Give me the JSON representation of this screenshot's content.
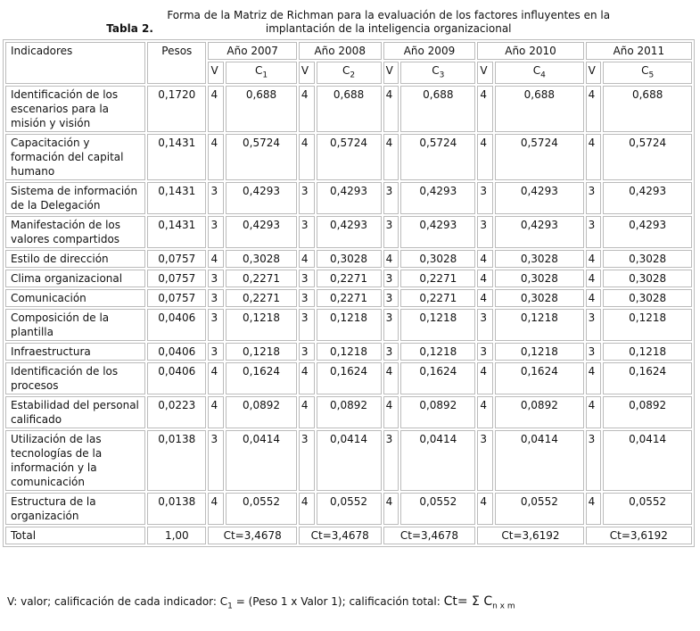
{
  "caption": {
    "label": "Tabla 2.",
    "text": "Forma de la Matriz de Richman para la evaluación de los factores influyentes en la implantación de la inteligencia organizacional"
  },
  "headers": {
    "indicadores": "Indicadores",
    "pesos": "Pesos",
    "years": [
      "Año 2007",
      "Año 2008",
      "Año 2009",
      "Año 2010",
      "Año 2011"
    ],
    "v": "V",
    "c": "C",
    "c_subs": [
      "1",
      "2",
      "3",
      "4",
      "5"
    ]
  },
  "rows": [
    {
      "name": "Identificación de los escenarios para la misión y visión",
      "peso": "0,1720",
      "vals": [
        [
          "4",
          "0,688"
        ],
        [
          "4",
          "0,688"
        ],
        [
          "4",
          "0,688"
        ],
        [
          "4",
          "0,688"
        ],
        [
          "4",
          "0,688"
        ]
      ]
    },
    {
      "name": "Capacitación y formación del capital humano",
      "peso": "0,1431",
      "vals": [
        [
          "4",
          "0,5724"
        ],
        [
          "4",
          "0,5724"
        ],
        [
          "4",
          "0,5724"
        ],
        [
          "4",
          "0,5724"
        ],
        [
          "4",
          "0,5724"
        ]
      ]
    },
    {
      "name": "Sistema de información de la Delegación",
      "peso": "0,1431",
      "vals": [
        [
          "3",
          "0,4293"
        ],
        [
          "3",
          "0,4293"
        ],
        [
          "3",
          "0,4293"
        ],
        [
          "3",
          "0,4293"
        ],
        [
          "3",
          "0,4293"
        ]
      ]
    },
    {
      "name": "Manifestación de los valores compartidos",
      "peso": "0,1431",
      "vals": [
        [
          "3",
          "0,4293"
        ],
        [
          "3",
          "0,4293"
        ],
        [
          "3",
          "0,4293"
        ],
        [
          "3",
          "0,4293"
        ],
        [
          "3",
          "0,4293"
        ]
      ]
    },
    {
      "name": "Estilo de dirección",
      "peso": "0,0757",
      "vals": [
        [
          "4",
          "0,3028"
        ],
        [
          "4",
          "0,3028"
        ],
        [
          "4",
          "0,3028"
        ],
        [
          "4",
          "0,3028"
        ],
        [
          "4",
          "0,3028"
        ]
      ]
    },
    {
      "name": "Clima organizacional",
      "peso": "0,0757",
      "vals": [
        [
          "3",
          "0,2271"
        ],
        [
          "3",
          "0,2271"
        ],
        [
          "3",
          "0,2271"
        ],
        [
          "4",
          "0,3028"
        ],
        [
          "4",
          "0,3028"
        ]
      ]
    },
    {
      "name": "Comunicación",
      "peso": "0,0757",
      "vals": [
        [
          "3",
          "0,2271"
        ],
        [
          "3",
          "0,2271"
        ],
        [
          "3",
          "0,2271"
        ],
        [
          "4",
          "0,3028"
        ],
        [
          "4",
          "0,3028"
        ]
      ]
    },
    {
      "name": "Composición de la plantilla",
      "peso": "0,0406",
      "vals": [
        [
          "3",
          "0,1218"
        ],
        [
          "3",
          "0,1218"
        ],
        [
          "3",
          "0,1218"
        ],
        [
          "3",
          "0,1218"
        ],
        [
          "3",
          "0,1218"
        ]
      ]
    },
    {
      "name": "Infraestructura",
      "peso": "0,0406",
      "vals": [
        [
          "3",
          "0,1218"
        ],
        [
          "3",
          "0,1218"
        ],
        [
          "3",
          "0,1218"
        ],
        [
          "3",
          "0,1218"
        ],
        [
          "3",
          "0,1218"
        ]
      ]
    },
    {
      "name": "Identificación de los procesos",
      "peso": "0,0406",
      "vals": [
        [
          "4",
          "0,1624"
        ],
        [
          "4",
          "0,1624"
        ],
        [
          "4",
          "0,1624"
        ],
        [
          "4",
          "0,1624"
        ],
        [
          "4",
          "0,1624"
        ]
      ]
    },
    {
      "name": "Estabilidad del personal calificado",
      "peso": "0,0223",
      "vals": [
        [
          "4",
          "0,0892"
        ],
        [
          "4",
          "0,0892"
        ],
        [
          "4",
          "0,0892"
        ],
        [
          "4",
          "0,0892"
        ],
        [
          "4",
          "0,0892"
        ]
      ]
    },
    {
      "name": "Utilización de las tecnologías de la información y la comunicación",
      "peso": "0,0138",
      "vals": [
        [
          "3",
          "0,0414"
        ],
        [
          "3",
          "0,0414"
        ],
        [
          "3",
          "0,0414"
        ],
        [
          "3",
          "0,0414"
        ],
        [
          "3",
          "0,0414"
        ]
      ]
    },
    {
      "name": "Estructura de la organización",
      "peso": "0,0138",
      "vals": [
        [
          "4",
          "0,0552"
        ],
        [
          "4",
          "0,0552"
        ],
        [
          "4",
          "0,0552"
        ],
        [
          "4",
          "0,0552"
        ],
        [
          "4",
          "0,0552"
        ]
      ]
    }
  ],
  "total": {
    "label": "Total",
    "peso": "1,00",
    "cts": [
      "Ct=3,4678",
      "Ct=3,4678",
      "Ct=3,4678",
      "Ct=3,6192",
      "Ct=3,6192"
    ]
  },
  "note": {
    "text": "V: valor; calificación de cada indicador: C",
    "sub1": "1",
    "text2": " = (Peso 1 x Valor 1); calificación total: ",
    "formula": "Ct= Σ C",
    "formula_sub": "n x m"
  }
}
